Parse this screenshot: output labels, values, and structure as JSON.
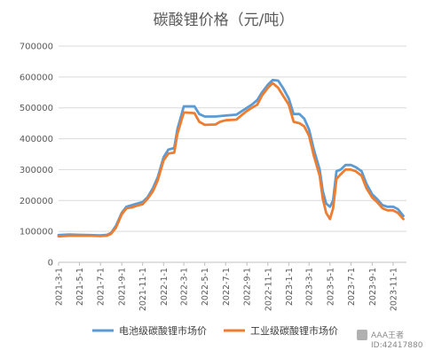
{
  "chart_data": {
    "type": "line",
    "title": "碳酸锂价格（元/吨）",
    "xlabel": "",
    "ylabel": "",
    "ylim": [
      0,
      700000
    ],
    "y_ticks": [
      0,
      100000,
      200000,
      300000,
      400000,
      500000,
      600000,
      700000
    ],
    "y_tick_labels": [
      "0",
      "100000",
      "200000",
      "300000",
      "400000",
      "500000",
      "600000",
      "700000"
    ],
    "x_ticks": [
      "2021-3-1",
      "2021-5-1",
      "2021-7-1",
      "2021-9-1",
      "2021-11-1",
      "2022-1-1",
      "2022-3-1",
      "2022-5-1",
      "2022-7-1",
      "2022-9-1",
      "2022-11-1",
      "2023-1-1",
      "2023-3-1",
      "2023-5-1",
      "2023-7-1",
      "2023-9-1",
      "2023-11-1"
    ],
    "grid": true,
    "legend_position": "bottom",
    "series": [
      {
        "name": "电池级碳酸锂市场价",
        "color": "#5B9BD5",
        "points": [
          [
            "2021-03-01",
            88000
          ],
          [
            "2021-04-01",
            90000
          ],
          [
            "2021-05-01",
            89000
          ],
          [
            "2021-06-01",
            88000
          ],
          [
            "2021-07-01",
            87000
          ],
          [
            "2021-07-20",
            89000
          ],
          [
            "2021-08-01",
            95000
          ],
          [
            "2021-08-15",
            118000
          ],
          [
            "2021-09-01",
            160000
          ],
          [
            "2021-09-15",
            180000
          ],
          [
            "2021-10-01",
            185000
          ],
          [
            "2021-10-15",
            190000
          ],
          [
            "2021-11-01",
            195000
          ],
          [
            "2021-11-15",
            210000
          ],
          [
            "2021-12-01",
            240000
          ],
          [
            "2021-12-15",
            275000
          ],
          [
            "2022-01-01",
            340000
          ],
          [
            "2022-01-15",
            365000
          ],
          [
            "2022-02-01",
            370000
          ],
          [
            "2022-02-10",
            430000
          ],
          [
            "2022-03-01",
            505000
          ],
          [
            "2022-04-01",
            505000
          ],
          [
            "2022-04-15",
            480000
          ],
          [
            "2022-05-01",
            472000
          ],
          [
            "2022-06-01",
            472000
          ],
          [
            "2022-07-01",
            475000
          ],
          [
            "2022-08-01",
            478000
          ],
          [
            "2022-08-15",
            488000
          ],
          [
            "2022-09-01",
            500000
          ],
          [
            "2022-09-15",
            510000
          ],
          [
            "2022-10-01",
            525000
          ],
          [
            "2022-10-15",
            550000
          ],
          [
            "2022-11-01",
            575000
          ],
          [
            "2022-11-15",
            590000
          ],
          [
            "2022-12-01",
            588000
          ],
          [
            "2022-12-15",
            565000
          ],
          [
            "2023-01-01",
            530000
          ],
          [
            "2023-01-15",
            480000
          ],
          [
            "2023-02-01",
            480000
          ],
          [
            "2023-02-15",
            465000
          ],
          [
            "2023-03-01",
            430000
          ],
          [
            "2023-03-15",
            365000
          ],
          [
            "2023-04-01",
            300000
          ],
          [
            "2023-04-10",
            230000
          ],
          [
            "2023-04-20",
            190000
          ],
          [
            "2023-05-01",
            180000
          ],
          [
            "2023-05-10",
            200000
          ],
          [
            "2023-05-20",
            295000
          ],
          [
            "2023-06-01",
            300000
          ],
          [
            "2023-06-15",
            315000
          ],
          [
            "2023-07-01",
            315000
          ],
          [
            "2023-07-15",
            308000
          ],
          [
            "2023-08-01",
            295000
          ],
          [
            "2023-08-15",
            255000
          ],
          [
            "2023-09-01",
            220000
          ],
          [
            "2023-09-15",
            205000
          ],
          [
            "2023-10-01",
            185000
          ],
          [
            "2023-10-15",
            180000
          ],
          [
            "2023-11-01",
            180000
          ],
          [
            "2023-11-15",
            172000
          ],
          [
            "2023-12-01",
            150000
          ]
        ]
      },
      {
        "name": "工业级碳酸锂市场价",
        "color": "#ED7D31",
        "points": [
          [
            "2021-03-01",
            84000
          ],
          [
            "2021-04-01",
            86000
          ],
          [
            "2021-05-01",
            86000
          ],
          [
            "2021-06-01",
            86000
          ],
          [
            "2021-07-01",
            85000
          ],
          [
            "2021-07-20",
            86000
          ],
          [
            "2021-08-01",
            92000
          ],
          [
            "2021-08-15",
            112000
          ],
          [
            "2021-09-01",
            155000
          ],
          [
            "2021-09-15",
            175000
          ],
          [
            "2021-10-01",
            178000
          ],
          [
            "2021-10-15",
            183000
          ],
          [
            "2021-11-01",
            188000
          ],
          [
            "2021-11-15",
            205000
          ],
          [
            "2021-12-01",
            230000
          ],
          [
            "2021-12-15",
            265000
          ],
          [
            "2022-01-01",
            330000
          ],
          [
            "2022-01-15",
            352000
          ],
          [
            "2022-02-01",
            355000
          ],
          [
            "2022-02-10",
            415000
          ],
          [
            "2022-03-01",
            485000
          ],
          [
            "2022-04-01",
            483000
          ],
          [
            "2022-04-15",
            455000
          ],
          [
            "2022-05-01",
            445000
          ],
          [
            "2022-06-01",
            446000
          ],
          [
            "2022-06-15",
            455000
          ],
          [
            "2022-07-01",
            460000
          ],
          [
            "2022-08-01",
            462000
          ],
          [
            "2022-08-15",
            475000
          ],
          [
            "2022-09-01",
            490000
          ],
          [
            "2022-09-15",
            500000
          ],
          [
            "2022-10-01",
            510000
          ],
          [
            "2022-10-15",
            540000
          ],
          [
            "2022-11-01",
            565000
          ],
          [
            "2022-11-15",
            580000
          ],
          [
            "2022-12-01",
            565000
          ],
          [
            "2022-12-15",
            540000
          ],
          [
            "2023-01-01",
            510000
          ],
          [
            "2023-01-15",
            455000
          ],
          [
            "2023-02-01",
            450000
          ],
          [
            "2023-02-15",
            440000
          ],
          [
            "2023-03-01",
            410000
          ],
          [
            "2023-03-15",
            345000
          ],
          [
            "2023-04-01",
            280000
          ],
          [
            "2023-04-10",
            205000
          ],
          [
            "2023-04-20",
            160000
          ],
          [
            "2023-05-01",
            140000
          ],
          [
            "2023-05-10",
            175000
          ],
          [
            "2023-05-20",
            270000
          ],
          [
            "2023-06-01",
            285000
          ],
          [
            "2023-06-15",
            300000
          ],
          [
            "2023-07-01",
            300000
          ],
          [
            "2023-07-15",
            295000
          ],
          [
            "2023-08-01",
            280000
          ],
          [
            "2023-08-15",
            240000
          ],
          [
            "2023-09-01",
            210000
          ],
          [
            "2023-09-15",
            195000
          ],
          [
            "2023-10-01",
            175000
          ],
          [
            "2023-10-15",
            168000
          ],
          [
            "2023-11-01",
            168000
          ],
          [
            "2023-11-15",
            160000
          ],
          [
            "2023-12-01",
            140000
          ]
        ]
      }
    ]
  },
  "watermark": {
    "line1": "AAA王者",
    "line2": "ID:42417880"
  }
}
